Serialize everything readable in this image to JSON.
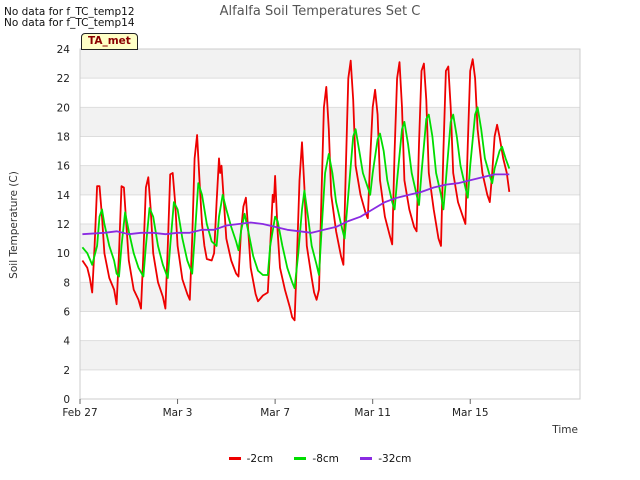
{
  "no_data_messages": [
    "No data for f_TC_temp12",
    "No data for f_TC_temp14"
  ],
  "badge": "TA_met",
  "chart_data": {
    "type": "line",
    "title": "Alfalfa Soil Temperatures Set C",
    "xlabel": "Time",
    "ylabel": "Soil Temperature (C)",
    "ylim": [
      0,
      24
    ],
    "yticks": [
      0,
      2,
      4,
      6,
      8,
      10,
      12,
      14,
      16,
      18,
      20,
      22,
      24
    ],
    "xlim": [
      0,
      20.5
    ],
    "x_unit": "days since Feb 27",
    "xticks": [
      {
        "x": 0,
        "label": "Feb 27"
      },
      {
        "x": 4,
        "label": "Mar 3"
      },
      {
        "x": 8,
        "label": "Mar 7"
      },
      {
        "x": 12,
        "label": "Mar 11"
      },
      {
        "x": 16,
        "label": "Mar 15"
      }
    ],
    "grid": "horizontal alternating bands",
    "legend_position": "bottom",
    "series": [
      {
        "name": "-2cm",
        "color": "#ee0000",
        "points": [
          [
            0.1,
            9.5
          ],
          [
            0.3,
            9.0
          ],
          [
            0.4,
            8.3
          ],
          [
            0.5,
            7.3
          ],
          [
            0.6,
            10.5
          ],
          [
            0.7,
            14.6
          ],
          [
            0.8,
            14.6
          ],
          [
            0.9,
            12.5
          ],
          [
            1.0,
            10.0
          ],
          [
            1.2,
            8.3
          ],
          [
            1.4,
            7.5
          ],
          [
            1.5,
            6.5
          ],
          [
            1.6,
            10.0
          ],
          [
            1.7,
            14.6
          ],
          [
            1.8,
            14.5
          ],
          [
            1.9,
            12.0
          ],
          [
            2.0,
            9.5
          ],
          [
            2.2,
            7.5
          ],
          [
            2.4,
            6.8
          ],
          [
            2.5,
            6.2
          ],
          [
            2.6,
            10.0
          ],
          [
            2.7,
            14.5
          ],
          [
            2.8,
            15.2
          ],
          [
            2.9,
            13.0
          ],
          [
            3.0,
            10.0
          ],
          [
            3.2,
            8.0
          ],
          [
            3.4,
            7.0
          ],
          [
            3.5,
            6.2
          ],
          [
            3.6,
            10.5
          ],
          [
            3.7,
            15.4
          ],
          [
            3.8,
            15.5
          ],
          [
            3.9,
            13.5
          ],
          [
            4.0,
            10.5
          ],
          [
            4.2,
            8.2
          ],
          [
            4.4,
            7.2
          ],
          [
            4.5,
            6.8
          ],
          [
            4.6,
            11.0
          ],
          [
            4.7,
            16.5
          ],
          [
            4.8,
            18.1
          ],
          [
            4.9,
            15.0
          ],
          [
            5.0,
            12.0
          ],
          [
            5.1,
            10.5
          ],
          [
            5.2,
            9.6
          ],
          [
            5.4,
            9.5
          ],
          [
            5.5,
            10.0
          ],
          [
            5.6,
            13.5
          ],
          [
            5.7,
            16.5
          ],
          [
            5.75,
            15.5
          ],
          [
            5.8,
            16.0
          ],
          [
            5.9,
            13.5
          ],
          [
            6.0,
            11.0
          ],
          [
            6.2,
            9.5
          ],
          [
            6.4,
            8.6
          ],
          [
            6.5,
            8.4
          ],
          [
            6.6,
            11.5
          ],
          [
            6.7,
            13.2
          ],
          [
            6.8,
            13.8
          ],
          [
            6.9,
            11.5
          ],
          [
            7.0,
            9.0
          ],
          [
            7.2,
            7.2
          ],
          [
            7.3,
            6.7
          ],
          [
            7.4,
            6.9
          ],
          [
            7.5,
            7.1
          ],
          [
            7.7,
            7.3
          ],
          [
            7.8,
            10.5
          ],
          [
            7.9,
            14.0
          ],
          [
            7.95,
            13.5
          ],
          [
            8.0,
            15.3
          ],
          [
            8.1,
            11.5
          ],
          [
            8.2,
            9.0
          ],
          [
            8.4,
            7.5
          ],
          [
            8.6,
            6.3
          ],
          [
            8.7,
            5.6
          ],
          [
            8.8,
            5.4
          ],
          [
            8.9,
            10.0
          ],
          [
            9.0,
            15.0
          ],
          [
            9.1,
            17.6
          ],
          [
            9.2,
            14.5
          ],
          [
            9.3,
            10.5
          ],
          [
            9.5,
            8.3
          ],
          [
            9.6,
            7.3
          ],
          [
            9.7,
            6.8
          ],
          [
            9.8,
            7.5
          ],
          [
            9.9,
            14.0
          ],
          [
            10.0,
            20.0
          ],
          [
            10.1,
            21.4
          ],
          [
            10.2,
            18.5
          ],
          [
            10.3,
            14.0
          ],
          [
            10.5,
            11.5
          ],
          [
            10.7,
            9.8
          ],
          [
            10.8,
            9.2
          ],
          [
            10.9,
            16.0
          ],
          [
            11.0,
            22.0
          ],
          [
            11.1,
            23.2
          ],
          [
            11.2,
            20.5
          ],
          [
            11.3,
            16.0
          ],
          [
            11.5,
            14.0
          ],
          [
            11.7,
            12.8
          ],
          [
            11.8,
            12.4
          ],
          [
            11.9,
            16.5
          ],
          [
            12.0,
            20.0
          ],
          [
            12.1,
            21.2
          ],
          [
            12.2,
            19.5
          ],
          [
            12.3,
            15.0
          ],
          [
            12.5,
            12.5
          ],
          [
            12.7,
            11.2
          ],
          [
            12.8,
            10.6
          ],
          [
            12.9,
            17.0
          ],
          [
            13.0,
            22.0
          ],
          [
            13.1,
            23.1
          ],
          [
            13.2,
            20.0
          ],
          [
            13.3,
            15.0
          ],
          [
            13.5,
            13.0
          ],
          [
            13.7,
            11.8
          ],
          [
            13.8,
            11.5
          ],
          [
            13.9,
            17.5
          ],
          [
            14.0,
            22.5
          ],
          [
            14.1,
            23.0
          ],
          [
            14.2,
            20.5
          ],
          [
            14.3,
            15.5
          ],
          [
            14.5,
            13.0
          ],
          [
            14.7,
            11.0
          ],
          [
            14.8,
            10.5
          ],
          [
            14.9,
            17.0
          ],
          [
            15.0,
            22.5
          ],
          [
            15.1,
            22.8
          ],
          [
            15.2,
            20.0
          ],
          [
            15.3,
            15.5
          ],
          [
            15.5,
            13.5
          ],
          [
            15.7,
            12.5
          ],
          [
            15.8,
            12.0
          ],
          [
            15.9,
            17.5
          ],
          [
            16.0,
            22.5
          ],
          [
            16.1,
            23.3
          ],
          [
            16.2,
            22.0
          ],
          [
            16.3,
            18.5
          ],
          [
            16.5,
            15.5
          ],
          [
            16.7,
            14.0
          ],
          [
            16.8,
            13.5
          ],
          [
            16.9,
            15.5
          ],
          [
            17.0,
            18.0
          ],
          [
            17.1,
            18.8
          ],
          [
            17.2,
            18.0
          ],
          [
            17.35,
            16.5
          ],
          [
            17.5,
            15.5
          ],
          [
            17.6,
            14.2
          ]
        ]
      },
      {
        "name": "-8cm",
        "color": "#00dd00",
        "points": [
          [
            0.1,
            10.4
          ],
          [
            0.3,
            10.0
          ],
          [
            0.5,
            9.2
          ],
          [
            0.7,
            10.5
          ],
          [
            0.8,
            12.5
          ],
          [
            0.9,
            13.0
          ],
          [
            1.0,
            12.0
          ],
          [
            1.2,
            10.5
          ],
          [
            1.4,
            9.5
          ],
          [
            1.5,
            8.6
          ],
          [
            1.6,
            8.4
          ],
          [
            1.7,
            10.5
          ],
          [
            1.85,
            12.8
          ],
          [
            2.0,
            11.5
          ],
          [
            2.2,
            10.0
          ],
          [
            2.4,
            9.0
          ],
          [
            2.6,
            8.4
          ],
          [
            2.7,
            10.5
          ],
          [
            2.85,
            13.1
          ],
          [
            3.0,
            12.5
          ],
          [
            3.2,
            10.5
          ],
          [
            3.4,
            9.2
          ],
          [
            3.6,
            8.3
          ],
          [
            3.7,
            10.5
          ],
          [
            3.85,
            13.5
          ],
          [
            4.0,
            13.0
          ],
          [
            4.2,
            11.0
          ],
          [
            4.4,
            9.5
          ],
          [
            4.6,
            8.6
          ],
          [
            4.7,
            11.0
          ],
          [
            4.85,
            14.8
          ],
          [
            5.0,
            14.0
          ],
          [
            5.2,
            12.0
          ],
          [
            5.4,
            10.8
          ],
          [
            5.6,
            10.5
          ],
          [
            5.7,
            12.5
          ],
          [
            5.85,
            14.0
          ],
          [
            6.0,
            13.0
          ],
          [
            6.2,
            11.8
          ],
          [
            6.4,
            10.8
          ],
          [
            6.5,
            10.2
          ],
          [
            6.6,
            11.5
          ],
          [
            6.75,
            12.7
          ],
          [
            6.9,
            11.5
          ],
          [
            7.1,
            9.8
          ],
          [
            7.3,
            8.8
          ],
          [
            7.5,
            8.5
          ],
          [
            7.7,
            8.5
          ],
          [
            7.8,
            10.5
          ],
          [
            8.0,
            12.5
          ],
          [
            8.1,
            12.2
          ],
          [
            8.3,
            10.5
          ],
          [
            8.5,
            9.0
          ],
          [
            8.7,
            8.0
          ],
          [
            8.8,
            7.6
          ],
          [
            8.95,
            10.0
          ],
          [
            9.1,
            13.0
          ],
          [
            9.2,
            14.3
          ],
          [
            9.35,
            12.5
          ],
          [
            9.5,
            10.5
          ],
          [
            9.7,
            9.2
          ],
          [
            9.8,
            8.5
          ],
          [
            9.9,
            11.5
          ],
          [
            10.05,
            15.5
          ],
          [
            10.2,
            16.8
          ],
          [
            10.35,
            15.5
          ],
          [
            10.5,
            13.5
          ],
          [
            10.7,
            12.0
          ],
          [
            10.85,
            11.0
          ],
          [
            11.0,
            14.0
          ],
          [
            11.2,
            18.0
          ],
          [
            11.3,
            18.5
          ],
          [
            11.45,
            17.0
          ],
          [
            11.6,
            15.5
          ],
          [
            11.8,
            14.5
          ],
          [
            11.9,
            14.0
          ],
          [
            12.0,
            15.5
          ],
          [
            12.2,
            17.8
          ],
          [
            12.3,
            18.2
          ],
          [
            12.45,
            17.0
          ],
          [
            12.6,
            15.0
          ],
          [
            12.8,
            13.5
          ],
          [
            12.9,
            13.0
          ],
          [
            13.0,
            15.0
          ],
          [
            13.2,
            18.5
          ],
          [
            13.3,
            19.0
          ],
          [
            13.45,
            17.5
          ],
          [
            13.6,
            15.5
          ],
          [
            13.8,
            14.0
          ],
          [
            13.9,
            13.3
          ],
          [
            14.0,
            15.5
          ],
          [
            14.2,
            19.2
          ],
          [
            14.3,
            19.5
          ],
          [
            14.45,
            18.0
          ],
          [
            14.6,
            15.5
          ],
          [
            14.8,
            14.0
          ],
          [
            14.9,
            13.0
          ],
          [
            15.0,
            15.0
          ],
          [
            15.2,
            19.0
          ],
          [
            15.3,
            19.5
          ],
          [
            15.45,
            18.0
          ],
          [
            15.6,
            16.0
          ],
          [
            15.8,
            14.5
          ],
          [
            15.9,
            13.8
          ],
          [
            16.0,
            16.0
          ],
          [
            16.2,
            19.5
          ],
          [
            16.3,
            20.0
          ],
          [
            16.45,
            18.5
          ],
          [
            16.6,
            16.5
          ],
          [
            16.8,
            15.3
          ],
          [
            16.9,
            14.8
          ],
          [
            17.0,
            15.8
          ],
          [
            17.2,
            17.0
          ],
          [
            17.3,
            17.3
          ],
          [
            17.45,
            16.5
          ],
          [
            17.6,
            15.8
          ]
        ]
      },
      {
        "name": "-32cm",
        "color": "#8a2be2",
        "points": [
          [
            0.1,
            11.3
          ],
          [
            1.0,
            11.4
          ],
          [
            1.5,
            11.5
          ],
          [
            2.0,
            11.3
          ],
          [
            2.5,
            11.4
          ],
          [
            3.0,
            11.4
          ],
          [
            3.5,
            11.3
          ],
          [
            4.0,
            11.4
          ],
          [
            4.5,
            11.4
          ],
          [
            5.0,
            11.6
          ],
          [
            5.5,
            11.6
          ],
          [
            6.0,
            11.9
          ],
          [
            6.5,
            12.0
          ],
          [
            7.0,
            12.1
          ],
          [
            7.5,
            12.0
          ],
          [
            8.0,
            11.8
          ],
          [
            8.5,
            11.6
          ],
          [
            9.0,
            11.5
          ],
          [
            9.5,
            11.4
          ],
          [
            10.0,
            11.6
          ],
          [
            10.5,
            11.8
          ],
          [
            11.0,
            12.2
          ],
          [
            11.5,
            12.5
          ],
          [
            12.0,
            13.0
          ],
          [
            12.5,
            13.5
          ],
          [
            13.0,
            13.8
          ],
          [
            13.5,
            14.0
          ],
          [
            14.0,
            14.2
          ],
          [
            14.5,
            14.5
          ],
          [
            15.0,
            14.7
          ],
          [
            15.5,
            14.8
          ],
          [
            16.0,
            15.0
          ],
          [
            16.5,
            15.2
          ],
          [
            17.0,
            15.4
          ],
          [
            17.6,
            15.4
          ]
        ]
      }
    ]
  }
}
